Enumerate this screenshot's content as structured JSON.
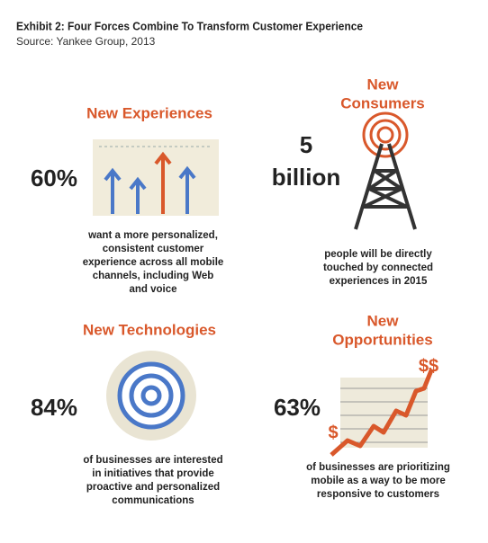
{
  "title": "Exhibit 2: Four Forces Combine To Transform Customer Experience",
  "source": "Source: Yankee Group, 2013",
  "panels": [
    {
      "heading": [
        "New Experiences"
      ],
      "stat": [
        "60%"
      ],
      "description": [
        "want a more personalized,",
        "consistent customer",
        "experience across all mobile",
        "channels, including Web",
        "and voice"
      ]
    },
    {
      "heading": [
        "New",
        "Consumers"
      ],
      "stat": [
        "5",
        "billion"
      ],
      "description": [
        "people will be directly",
        "touched by connected",
        "experiences in 2015"
      ]
    },
    {
      "heading": [
        "New Technologies"
      ],
      "stat": [
        "84%"
      ],
      "description": [
        "of businesses are interested",
        "in initiatives that provide",
        "proactive and personalized",
        "communications"
      ]
    },
    {
      "heading": [
        "New",
        "Opportunities"
      ],
      "stat": [
        "63%"
      ],
      "description": [
        "of businesses are prioritizing",
        "mobile as a way to be more",
        "responsive to customers"
      ]
    }
  ],
  "icon_labels": [
    "$$",
    "$"
  ]
}
